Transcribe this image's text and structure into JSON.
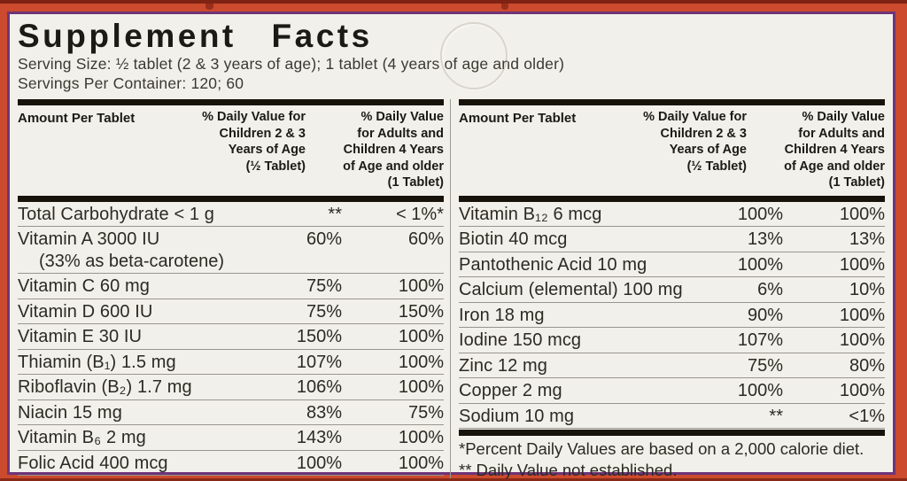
{
  "label": {
    "title": "Supplement Facts",
    "serving_size": "Serving Size: ½ tablet (2 & 3 years of age); 1 tablet (4 years of age and older)",
    "servings_per_container": "Servings Per Container: 120; 60"
  },
  "table_header": {
    "amount": "Amount Per Tablet",
    "dv_children": "% Daily Value for\nChildren 2 & 3\nYears of Age\n(½ Tablet)",
    "dv_adults": "% Daily Value\nfor Adults and\nChildren 4 Years\nof Age and older\n(1 Tablet)"
  },
  "left_rows": [
    {
      "name": "Total Carbohydrate < 1 g",
      "dv1": "**",
      "dv2": "< 1%*"
    },
    {
      "name": "Vitamin A 3000 IU",
      "sub": "(33% as beta-carotene)",
      "dv1": "60%",
      "dv2": "60%"
    },
    {
      "name": "Vitamin C 60 mg",
      "dv1": "75%",
      "dv2": "100%"
    },
    {
      "name": "Vitamin D 600 IU",
      "dv1": "75%",
      "dv2": "150%"
    },
    {
      "name": "Vitamin E 30 IU",
      "dv1": "150%",
      "dv2": "100%"
    },
    {
      "name": "Thiamin (B₁) 1.5 mg",
      "dv1": "107%",
      "dv2": "100%"
    },
    {
      "name": "Riboflavin (B₂) 1.7 mg",
      "dv1": "106%",
      "dv2": "100%"
    },
    {
      "name": "Niacin 15 mg",
      "dv1": "83%",
      "dv2": "75%"
    },
    {
      "name": "Vitamin B₆ 2 mg",
      "dv1": "143%",
      "dv2": "100%"
    },
    {
      "name": "Folic Acid 400 mcg",
      "dv1": "100%",
      "dv2": "100%"
    }
  ],
  "right_rows": [
    {
      "name": "Vitamin B₁₂ 6 mcg",
      "dv1": "100%",
      "dv2": "100%"
    },
    {
      "name": "Biotin 40 mcg",
      "dv1": "13%",
      "dv2": "13%"
    },
    {
      "name": "Pantothenic Acid 10 mg",
      "dv1": "100%",
      "dv2": "100%"
    },
    {
      "name": "Calcium (elemental) 100 mg",
      "dv1": "6%",
      "dv2": "10%"
    },
    {
      "name": "Iron 18 mg",
      "dv1": "90%",
      "dv2": "100%"
    },
    {
      "name": "Iodine 150 mcg",
      "dv1": "107%",
      "dv2": "100%"
    },
    {
      "name": "Zinc 12 mg",
      "dv1": "75%",
      "dv2": "80%"
    },
    {
      "name": "Copper 2 mg",
      "dv1": "100%",
      "dv2": "100%"
    },
    {
      "name": "Sodium 10 mg",
      "dv1": "**",
      "dv2": "<1%"
    }
  ],
  "footnotes": {
    "line1": "*Percent Daily Values are based on a 2,000 calorie diet.",
    "line2": "** Daily Value not established."
  },
  "colors": {
    "box_red": "#cc4a2d",
    "border_purple": "#6e3478",
    "label_background": "#f2f0ea",
    "bar_black": "#17130b",
    "rule_gray": "#97968e"
  }
}
